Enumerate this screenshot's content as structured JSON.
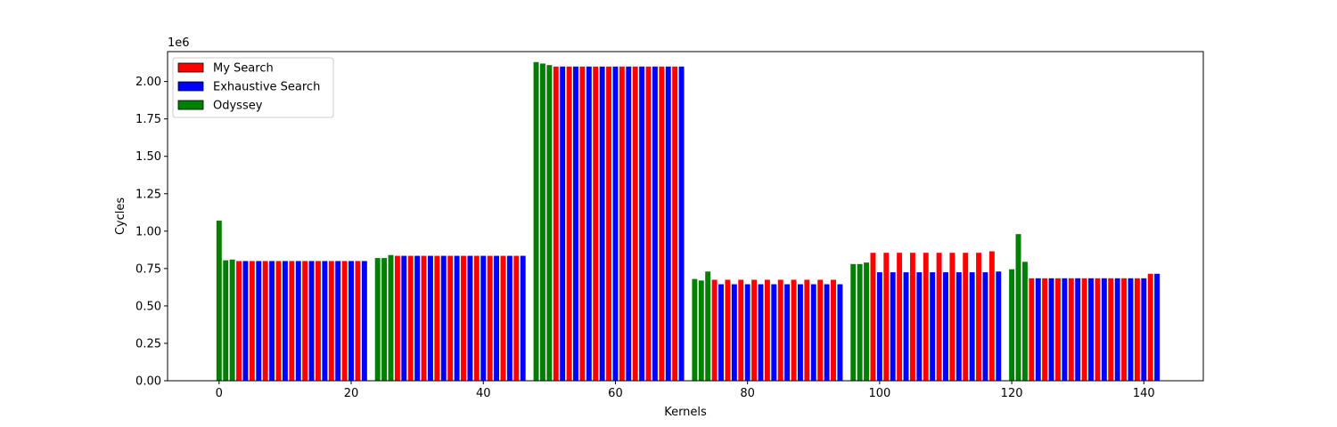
{
  "chart_data": {
    "type": "bar",
    "title": "",
    "xlabel": "Kernels",
    "ylabel": "Cycles",
    "y_offset_label": "1e6",
    "xlim": [
      -7.8,
      149
    ],
    "ylim": [
      0,
      2.2
    ],
    "x_ticks": [
      0,
      20,
      40,
      60,
      80,
      100,
      120,
      140
    ],
    "y_ticks": [
      "0.00",
      "0.25",
      "0.50",
      "0.75",
      "1.00",
      "1.25",
      "1.50",
      "1.75",
      "2.00"
    ],
    "grid": false,
    "legend_position": "top-left",
    "series": [
      {
        "name": "My Search",
        "color": "#ff0000",
        "x": [
          3,
          5,
          7,
          9,
          11,
          13,
          15,
          17,
          19,
          21,
          27,
          29,
          31,
          33,
          35,
          37,
          39,
          41,
          43,
          45,
          51,
          53,
          55,
          57,
          59,
          61,
          63,
          65,
          67,
          69,
          75,
          77,
          79,
          81,
          83,
          85,
          87,
          89,
          91,
          93,
          99,
          101,
          103,
          105,
          107,
          109,
          111,
          113,
          115,
          117,
          123,
          125,
          127,
          129,
          131,
          133,
          135,
          137,
          139,
          141
        ],
        "values": [
          0.8,
          0.8,
          0.8,
          0.8,
          0.8,
          0.8,
          0.8,
          0.8,
          0.8,
          0.8,
          0.835,
          0.835,
          0.835,
          0.835,
          0.835,
          0.835,
          0.835,
          0.835,
          0.835,
          0.835,
          2.1,
          2.1,
          2.1,
          2.1,
          2.1,
          2.1,
          2.1,
          2.1,
          2.1,
          2.1,
          0.675,
          0.675,
          0.675,
          0.675,
          0.675,
          0.675,
          0.675,
          0.675,
          0.675,
          0.675,
          0.855,
          0.855,
          0.855,
          0.855,
          0.855,
          0.855,
          0.855,
          0.855,
          0.855,
          0.865,
          0.685,
          0.685,
          0.685,
          0.685,
          0.685,
          0.685,
          0.685,
          0.685,
          0.685,
          0.715
        ]
      },
      {
        "name": "Exhaustive Search",
        "color": "#0000ff",
        "x": [
          4,
          6,
          8,
          10,
          12,
          14,
          16,
          18,
          20,
          22,
          28,
          30,
          32,
          34,
          36,
          38,
          40,
          42,
          44,
          46,
          52,
          54,
          56,
          58,
          60,
          62,
          64,
          66,
          68,
          70,
          76,
          78,
          80,
          82,
          84,
          86,
          88,
          90,
          92,
          94,
          100,
          102,
          104,
          106,
          108,
          110,
          112,
          114,
          116,
          118,
          124,
          126,
          128,
          130,
          132,
          134,
          136,
          138,
          140,
          142
        ],
        "values": [
          0.8,
          0.8,
          0.8,
          0.8,
          0.8,
          0.8,
          0.8,
          0.8,
          0.8,
          0.8,
          0.835,
          0.835,
          0.835,
          0.835,
          0.835,
          0.835,
          0.835,
          0.835,
          0.835,
          0.835,
          2.1,
          2.1,
          2.1,
          2.1,
          2.1,
          2.1,
          2.1,
          2.1,
          2.1,
          2.1,
          0.645,
          0.645,
          0.645,
          0.645,
          0.645,
          0.645,
          0.645,
          0.645,
          0.645,
          0.645,
          0.725,
          0.725,
          0.725,
          0.725,
          0.725,
          0.725,
          0.725,
          0.725,
          0.725,
          0.73,
          0.685,
          0.685,
          0.685,
          0.685,
          0.685,
          0.685,
          0.685,
          0.685,
          0.685,
          0.715
        ]
      },
      {
        "name": "Odyssey",
        "color": "#008000",
        "x": [
          0,
          1,
          2,
          24,
          25,
          26,
          48,
          49,
          50,
          72,
          73,
          74,
          96,
          97,
          98,
          120,
          121,
          122
        ],
        "values": [
          1.07,
          0.805,
          0.81,
          0.82,
          0.82,
          0.84,
          2.13,
          2.12,
          2.11,
          0.68,
          0.67,
          0.73,
          0.78,
          0.78,
          0.79,
          0.745,
          0.98,
          0.795
        ]
      }
    ]
  }
}
